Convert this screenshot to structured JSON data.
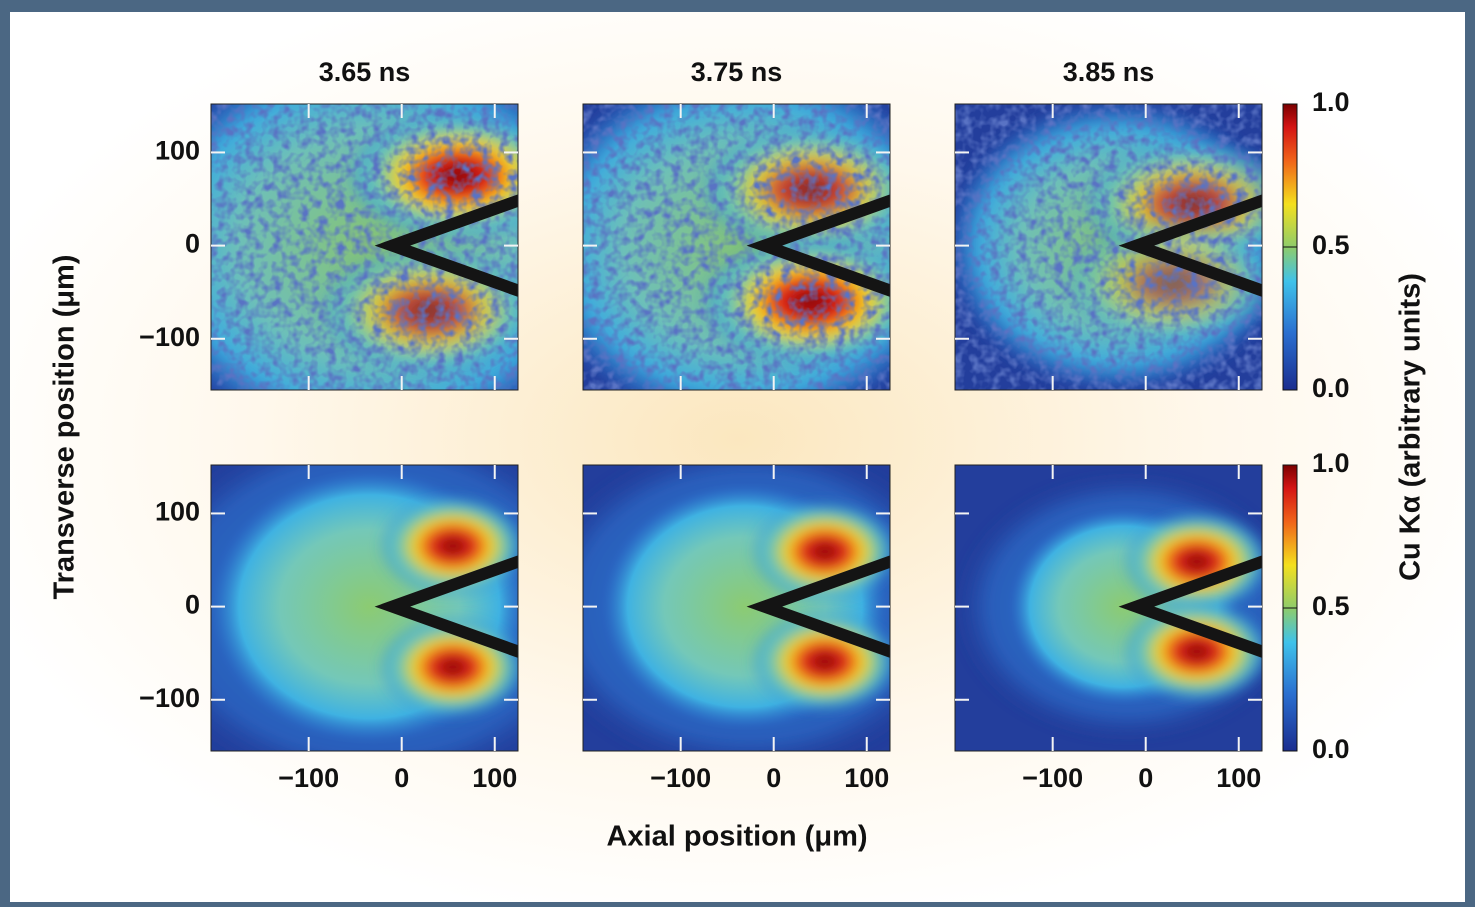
{
  "chart_data": [
    {
      "type": "heatmap",
      "title": "3.65 ns",
      "xlim": [
        -205,
        125
      ],
      "ylim": [
        -155,
        152
      ],
      "xticks": [
        {
          "value": -100,
          "label": "−100"
        },
        0,
        100
      ],
      "yticks": [
        {
          "value": -100,
          "label": "−100"
        },
        0,
        100
      ]
    },
    {
      "type": "heatmap",
      "title": "3.75 ns",
      "xlim": [
        -205,
        125
      ],
      "ylim": [
        -155,
        152
      ],
      "xticks": [
        {
          "value": -100,
          "label": "−100"
        },
        0,
        100
      ],
      "yticks": [
        {
          "value": -100,
          "label": "−100"
        },
        0,
        100
      ]
    },
    {
      "type": "heatmap",
      "title": "3.85 ns",
      "xlim": [
        -205,
        125
      ],
      "ylim": [
        -155,
        152
      ],
      "xticks": [
        {
          "value": -100,
          "label": "−100"
        },
        0,
        100
      ],
      "yticks": [
        {
          "value": -100,
          "label": "−100"
        },
        0,
        100
      ]
    },
    {
      "type": "heatmap",
      "xlim": [
        -205,
        125
      ],
      "ylim": [
        -155,
        152
      ],
      "xticks": [
        {
          "value": -100,
          "label": "−100"
        },
        0,
        100
      ],
      "yticks": [
        {
          "value": -100,
          "label": "−100"
        },
        0,
        100
      ]
    },
    {
      "type": "heatmap",
      "xlim": [
        -205,
        125
      ],
      "ylim": [
        -155,
        152
      ],
      "xticks": [
        {
          "value": -100,
          "label": "−100"
        },
        0,
        100
      ],
      "yticks": [
        {
          "value": -100,
          "label": "−100"
        },
        0,
        100
      ]
    },
    {
      "type": "heatmap",
      "xlim": [
        -205,
        125
      ],
      "ylim": [
        -155,
        152
      ],
      "xticks": [
        {
          "value": -100,
          "label": "−100"
        },
        0,
        100
      ],
      "yticks": [
        {
          "value": -100,
          "label": "−100"
        },
        0,
        100
      ]
    }
  ],
  "figure": {
    "xlabel": "Axial position (μm)",
    "ylabel": "Transverse position (μm)",
    "colorbar_label": "Cu Kα (arbitrary units)",
    "colorbar": {
      "lim": [
        0,
        1
      ],
      "ticks": [
        {
          "value": 0,
          "label": "0.0"
        },
        {
          "value": 0.5,
          "label": "0.5"
        },
        {
          "value": 1,
          "label": "1.0"
        }
      ]
    }
  }
}
